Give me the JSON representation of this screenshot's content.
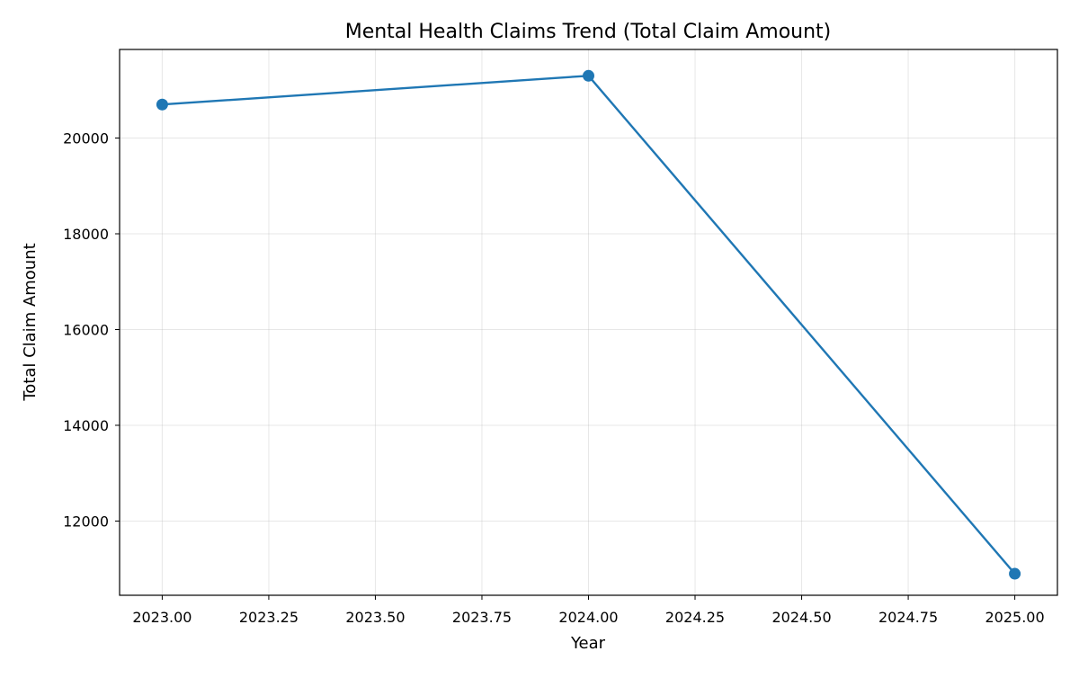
{
  "chart_data": {
    "type": "line",
    "title": "Mental Health Claims Trend (Total Claim Amount)",
    "xlabel": "Year",
    "ylabel": "Total Claim Amount",
    "xlim": [
      2022.9,
      2025.1
    ],
    "ylim": [
      10450,
      21850
    ],
    "x_ticks": [
      "2023.00",
      "2023.25",
      "2023.50",
      "2023.75",
      "2024.00",
      "2024.25",
      "2024.50",
      "2024.75",
      "2025.00"
    ],
    "x_tick_values": [
      2023.0,
      2023.25,
      2023.5,
      2023.75,
      2024.0,
      2024.25,
      2024.5,
      2024.75,
      2025.0
    ],
    "y_ticks": [
      "12000",
      "14000",
      "16000",
      "18000",
      "20000"
    ],
    "y_tick_values": [
      12000,
      14000,
      16000,
      18000,
      20000
    ],
    "grid": true,
    "legend": "none",
    "series": [
      {
        "x": [
          2023,
          2024,
          2025
        ],
        "values": [
          20700,
          21300,
          10900
        ],
        "color": "#1f77b4",
        "marker": "circle"
      }
    ]
  }
}
